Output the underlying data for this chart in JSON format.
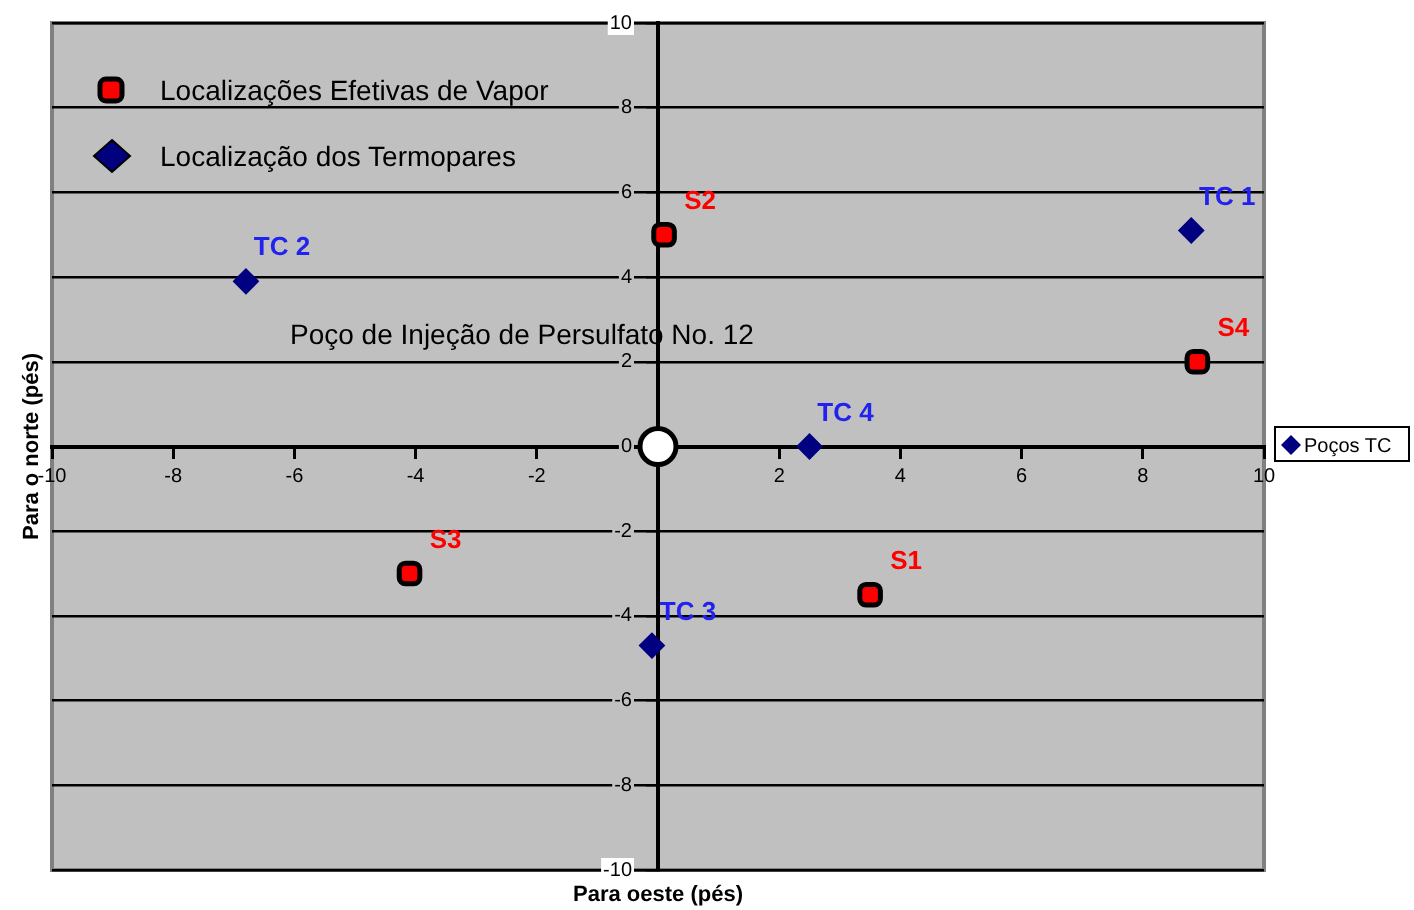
{
  "chart_data": {
    "type": "scatter",
    "xlabel": "Para oeste (pés)",
    "ylabel": "Para o norte (pés)",
    "xlim": [
      -10,
      10
    ],
    "ylim": [
      -10,
      10
    ],
    "xticks": [
      -10,
      -8,
      -6,
      -4,
      -2,
      {
        "value": 0,
        "label": null
      },
      2,
      4,
      6,
      8,
      10
    ],
    "yticks": [
      -10,
      -8,
      -6,
      -4,
      -2,
      0,
      2,
      4,
      6,
      8,
      10
    ],
    "grid": "y",
    "legend": "top left",
    "series": [
      {
        "name": "Localizações Efetivas de Vapor",
        "color": "#ff0000",
        "marker": "square",
        "x": [
          3.5,
          0.1,
          -4.1,
          8.9
        ],
        "values": [
          -3.5,
          5.0,
          -3.0,
          2.0
        ]
      },
      {
        "name": "Localização dos Termopares",
        "color": "#000080",
        "marker": "diamond",
        "x": [
          8.8,
          -6.8,
          -0.1,
          2.5
        ],
        "values": [
          5.1,
          3.9,
          -4.7,
          0
        ]
      },
      {
        "color": "#ffffff",
        "marker": "circle",
        "x": [
          0
        ],
        "values": [
          0
        ]
      }
    ],
    "annotations": [
      "Poços TC",
      "Poço de Injeção de Persulfato No. 12",
      {
        "text": "S1",
        "x": 3.5,
        "y": -3.5
      },
      {
        "text": "S2",
        "x": 0.1,
        "y": 5.0
      },
      {
        "text": "S3",
        "x": -4.1,
        "y": -3.0
      },
      {
        "text": "S4",
        "x": 8.9,
        "y": 2.0
      },
      {
        "text": "TC 1",
        "x": 8.8,
        "y": 5.1
      },
      {
        "text": "TC 2",
        "x": -6.8,
        "y": 3.9
      },
      {
        "text": "TC 3",
        "x": -0.1,
        "y": -4.7
      },
      {
        "text": "TC 4",
        "x": 2.5,
        "y": 0
      }
    ]
  }
}
